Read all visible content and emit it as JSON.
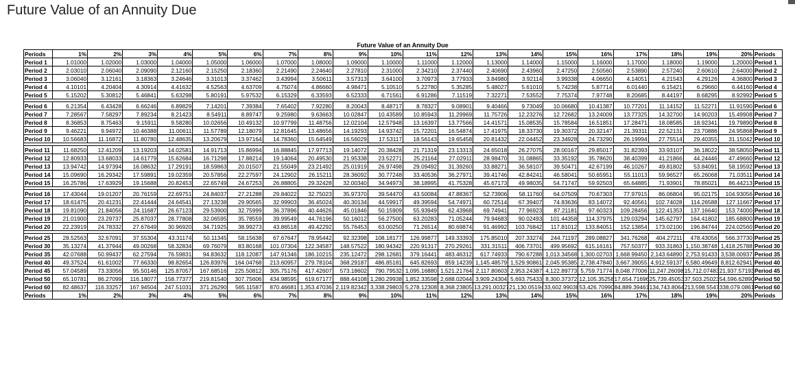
{
  "page": {
    "title": "Future Value of an Annuity Due"
  },
  "table": {
    "caption": "Future Value of an Annuity Due",
    "periods_label": "Periods",
    "rates": [
      "1%",
      "2%",
      "3%",
      "4%",
      "5%",
      "6%",
      "7%",
      "8%",
      "9%",
      "10%",
      "11%",
      "12%",
      "13%",
      "14%",
      "15%",
      "16%",
      "17%",
      "18%",
      "19%",
      "20%"
    ],
    "groups": [
      {
        "rows": [
          {
            "label": "Period 1",
            "values": [
              "1.01000",
              "1.02000",
              "1.03000",
              "1.04000",
              "1.05000",
              "1.06000",
              "1.07000",
              "1.08000",
              "1.09000",
              "1.10000",
              "1.11000",
              "1.12000",
              "1.13000",
              "1.14000",
              "1.15000",
              "1.16000",
              "1.17000",
              "1.18000",
              "1.19000",
              "1.20000"
            ]
          },
          {
            "label": "Period 2",
            "values": [
              "2.03010",
              "2.06040",
              "2.09090",
              "2.12160",
              "2.15250",
              "2.18360",
              "2.21490",
              "2.24640",
              "2.27810",
              "2.31000",
              "2.34210",
              "2.37440",
              "2.40690",
              "2.43960",
              "2.47250",
              "2.50560",
              "2.53890",
              "2.57240",
              "2.60610",
              "2.64000"
            ]
          },
          {
            "label": "Period 3",
            "values": [
              "3.06040",
              "3.12161",
              "3.18363",
              "3.24646",
              "3.31013",
              "3.37462",
              "3.43994",
              "3.50611",
              "3.57313",
              "3.64100",
              "3.70973",
              "3.77933",
              "3.84980",
              "3.92114",
              "3.99338",
              "4.06650",
              "4.14051",
              "4.21543",
              "4.29126",
              "4.36800"
            ]
          },
          {
            "label": "Period 4",
            "values": [
              "4.10101",
              "4.20404",
              "4.30914",
              "4.41632",
              "4.52563",
              "4.63709",
              "4.75074",
              "4.86660",
              "4.98471",
              "5.10510",
              "5.22780",
              "5.35285",
              "5.48027",
              "5.61010",
              "5.74238",
              "5.87714",
              "6.01440",
              "6.15421",
              "6.29660",
              "6.44160"
            ]
          },
          {
            "label": "Period 5",
            "values": [
              "5.15202",
              "5.30812",
              "5.46841",
              "5.63298",
              "5.80191",
              "5.97532",
              "6.15329",
              "6.33593",
              "6.52333",
              "6.71561",
              "6.91286",
              "7.11519",
              "7.32271",
              "7.53552",
              "7.75374",
              "7.97748",
              "8.20685",
              "8.44197",
              "8.68295",
              "8.92992"
            ]
          }
        ]
      },
      {
        "rows": [
          {
            "label": "Period 6",
            "values": [
              "6.21354",
              "6.43428",
              "6.66246",
              "6.89829",
              "7.14201",
              "7.39384",
              "7.65402",
              "7.92280",
              "8.20043",
              "8.48717",
              "8.78327",
              "9.08901",
              "9.40466",
              "9.73049",
              "10.06680",
              "10.41387",
              "10.77201",
              "11.14152",
              "11.52271",
              "11.91590"
            ]
          },
          {
            "label": "Period 7",
            "values": [
              "7.28567",
              "7.58297",
              "7.89234",
              "8.21423",
              "8.54911",
              "8.89747",
              "9.25980",
              "9.63663",
              "10.02847",
              "10.43589",
              "10.85943",
              "11.29969",
              "11.75726",
              "12.23276",
              "12.72682",
              "13.24009",
              "13.77325",
              "14.32700",
              "14.90203",
              "15.49908"
            ]
          },
          {
            "label": "Period 8",
            "values": [
              "8.36853",
              "8.75463",
              "9.15911",
              "9.58280",
              "10.02656",
              "10.49132",
              "10.97799",
              "11.48756",
              "12.02104",
              "12.57948",
              "13.16397",
              "13.77566",
              "14.41571",
              "15.08535",
              "15.78584",
              "16.51851",
              "17.28471",
              "18.08585",
              "18.92341",
              "19.79890"
            ]
          },
          {
            "label": "Period 9",
            "values": [
              "9.46221",
              "9.94972",
              "10.46388",
              "11.00611",
              "11.57789",
              "12.18079",
              "12.81645",
              "13.48656",
              "14.19293",
              "14.93742",
              "15.72201",
              "16.54874",
              "17.41975",
              "18.33730",
              "19.30372",
              "20.32147",
              "21.39311",
              "22.52131",
              "23.70886",
              "24.95868"
            ]
          },
          {
            "label": "Period 10",
            "values": [
              "10.56683",
              "11.16872",
              "11.80780",
              "12.48635",
              "13.20679",
              "13.97164",
              "14.78360",
              "15.64549",
              "16.56029",
              "17.53117",
              "18.56143",
              "19.65458",
              "20.81432",
              "22.04452",
              "23.34928",
              "24.73290",
              "26.19994",
              "27.75514",
              "29.40355",
              "31.15042"
            ]
          }
        ]
      },
      {
        "rows": [
          {
            "label": "Period 11",
            "values": [
              "11.68250",
              "12.41209",
              "13.19203",
              "14.02581",
              "14.91713",
              "15.86994",
              "16.88845",
              "17.97713",
              "19.14072",
              "20.38428",
              "21.71319",
              "23.13313",
              "24.65018",
              "26.27075",
              "28.00167",
              "29.85017",
              "31.82393",
              "33.93107",
              "36.18022",
              "38.58050"
            ]
          },
          {
            "label": "Period 12",
            "values": [
              "12.80933",
              "13.68033",
              "14.61779",
              "15.62684",
              "16.71298",
              "17.88214",
              "19.14064",
              "20.49530",
              "21.95338",
              "23.52271",
              "25.21164",
              "27.02911",
              "28.98470",
              "31.08865",
              "33.35192",
              "35.78620",
              "38.40399",
              "41.21866",
              "44.24446",
              "47.49660"
            ]
          },
          {
            "label": "Period 13",
            "values": [
              "13.94742",
              "14.97394",
              "16.08632",
              "17.29191",
              "18.59863",
              "20.01507",
              "21.55049",
              "23.21492",
              "25.01919",
              "26.97498",
              "29.09492",
              "31.39260",
              "33.88271",
              "36.58107",
              "39.50471",
              "42.67199",
              "46.10267",
              "49.81802",
              "53.84091",
              "58.19592"
            ]
          },
          {
            "label": "Period 14",
            "values": [
              "15.09690",
              "16.29342",
              "17.59891",
              "19.02359",
              "20.57856",
              "22.27597",
              "24.12902",
              "26.15211",
              "28.36092",
              "30.77248",
              "33.40536",
              "36.27971",
              "39.41746",
              "42.84241",
              "46.58041",
              "50.65951",
              "55.11013",
              "59.96527",
              "65.26068",
              "71.03511"
            ]
          },
          {
            "label": "Period 15",
            "values": [
              "16.25786",
              "17.63929",
              "19.15688",
              "20.82453",
              "22.65749",
              "24.67253",
              "26.88805",
              "29.32428",
              "32.00340",
              "34.94973",
              "38.18995",
              "41.75328",
              "45.67173",
              "49.98035",
              "54.71747",
              "59.92503",
              "65.64885",
              "71.93901",
              "78.85021",
              "86.44213"
            ]
          }
        ]
      },
      {
        "rows": [
          {
            "label": "Period 16",
            "values": [
              "17.43044",
              "19.01207",
              "20.76159",
              "22.69751",
              "24.84037",
              "27.21288",
              "29.84022",
              "32.75023",
              "35.97370",
              "39.54470",
              "43.50084",
              "47.88367",
              "52.73906",
              "58.11760",
              "64.07509",
              "70.67303",
              "77.97915",
              "86.06804",
              "95.02175",
              "104.93056"
            ]
          },
          {
            "label": "Period 17",
            "values": [
              "18.61475",
              "20.41231",
              "22.41444",
              "24.64541",
              "27.13238",
              "29.90565",
              "32.99903",
              "36.45024",
              "40.30134",
              "44.59917",
              "49.39594",
              "54.74971",
              "60.72514",
              "67.39407",
              "74.83636",
              "83.14072",
              "92.40561",
              "102.74028",
              "114.26588",
              "127.11667"
            ]
          },
          {
            "label": "Period 18",
            "values": [
              "19.81090",
              "21.84056",
              "24.11687",
              "26.67123",
              "29.53900",
              "32.75999",
              "36.37896",
              "40.44626",
              "45.01846",
              "50.15909",
              "55.93949",
              "62.43968",
              "69.74941",
              "77.96923",
              "87.21181",
              "97.60323",
              "109.28456",
              "122.41353",
              "137.16640",
              "153.74000"
            ]
          },
          {
            "label": "Period 19",
            "values": [
              "21.01900",
              "23.29737",
              "25.87037",
              "28.77808",
              "32.06595",
              "35.78559",
              "39.99549",
              "44.76196",
              "50.16012",
              "56.27500",
              "63.20283",
              "71.05244",
              "79.94683",
              "90.02493",
              "101.44358",
              "114.37975",
              "129.03294",
              "145.62797",
              "164.41802",
              "185.68800"
            ]
          },
          {
            "label": "Period 20",
            "values": [
              "22.23919",
              "24.78332",
              "27.67649",
              "30.96920",
              "34.71925",
              "38.99273",
              "43.86518",
              "49.42292",
              "55.76453",
              "63.00250",
              "71.26514",
              "80.69874",
              "91.46992",
              "103.76842",
              "117.81012",
              "133.84051",
              "152.13854",
              "173.02100",
              "196.84744",
              "224.02560"
            ]
          }
        ]
      },
      {
        "rows": [
          {
            "label": "Period 25",
            "values": [
              "28.52563",
              "32.67091",
              "37.55304",
              "43.31174",
              "50.11345",
              "58.15638",
              "67.67647",
              "78.95442",
              "92.32398",
              "108.18177",
              "126.99877",
              "149.33393",
              "175.85010",
              "207.33274",
              "244.71197",
              "289.08827",
              "341.76268",
              "404.27211",
              "478.43056",
              "566.37730"
            ]
          },
          {
            "label": "Period 30",
            "values": [
              "35.13274",
              "41.37944",
              "49.00268",
              "58.32834",
              "69.76079",
              "83.80168",
              "101.07304",
              "122.34587",
              "148.57522",
              "180.94342",
              "220.91317",
              "270.29261",
              "331.31511",
              "406.73701",
              "499.95692",
              "615.16161",
              "757.50377",
              "933.31863",
              "1,150.38748",
              "1,418.25788"
            ]
          },
          {
            "label": "Period 35",
            "values": [
              "42.07688",
              "50.99437",
              "62.27594",
              "76.59831",
              "94.83632",
              "118.12087",
              "147.91346",
              "186.10215",
              "235.12472",
              "298.12681",
              "379.16441",
              "483.46312",
              "617.74933",
              "790.67288",
              "1,013.34568",
              "1,300.02703",
              "1,668.99450",
              "2,143.64890",
              "2,753.91433",
              "3,538.00937"
            ]
          },
          {
            "label": "Period 40",
            "values": [
              "49.37524",
              "61.61002",
              "77.66330",
              "98.82654",
              "126.83976",
              "164.04768",
              "213.60957",
              "279.78104",
              "368.29187",
              "486.85181",
              "645.82693",
              "859.14239",
              "1,145.48579",
              "1,529.90861",
              "2,045.95385",
              "2,738.47840",
              "3,667.39055",
              "4,912.59137",
              "6,580.49649",
              "8,812.62941"
            ]
          },
          {
            "label": "Period 45",
            "values": [
              "57.04589",
              "73.33056",
              "95.50146",
              "125.87057",
              "167.68516",
              "225.50812",
              "305.75176",
              "417.42607",
              "573.18602",
              "790.79532",
              "1,095.16880",
              "1,521.21764",
              "2,117.80603",
              "2,953.24387",
              "4,122.89773",
              "5,759.71774",
              "8,048.77006",
              "11,247.26098",
              "15,712.07483",
              "21,937.57193"
            ]
          },
          {
            "label": "Period 50",
            "values": [
              "65.10781",
              "86.27099",
              "116.18077",
              "158.77377",
              "219.81540",
              "307.75606",
              "434.98595",
              "619.67177",
              "888.44108",
              "1,280.29938",
              "1,852.33598",
              "2,688.02044",
              "3,909.24304",
              "5,693.75433",
              "8,300.37372",
              "12,105.35258",
              "17,654.71696",
              "25,739.45053",
              "37,503.25023",
              "54,596.62890"
            ]
          },
          {
            "label": "Period 60",
            "values": [
              "82.48637",
              "116.33257",
              "167.94504",
              "247.51031",
              "371.26290",
              "565.11587",
              "870.46681",
              "1,353.47036",
              "2,119.82342",
              "3,338.29803",
              "5,278.12308",
              "8,368.23805",
              "13,291.00327",
              "21,130.05194",
              "33,602.99038",
              "53,426.70990",
              "84,889.39461",
              "134,743.80644",
              "213,598.55470",
              "338,079.08612"
            ]
          }
        ]
      }
    ]
  }
}
